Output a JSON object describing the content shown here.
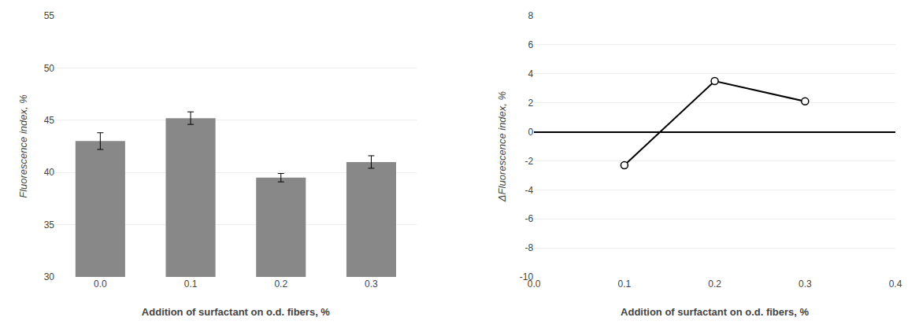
{
  "chart_data": [
    {
      "type": "bar",
      "categories": [
        "0.0",
        "0.1",
        "0.2",
        "0.3"
      ],
      "values": [
        43.0,
        45.2,
        39.5,
        41.0
      ],
      "errors": [
        0.8,
        0.6,
        0.4,
        0.6
      ],
      "color": "#888888",
      "xlabel": "Addition of surfactant on o.d. fibers, %",
      "ylabel": "Fluorescence index, %",
      "ylim": [
        30,
        55
      ],
      "yticks": [
        30,
        35,
        40,
        45,
        50,
        55
      ],
      "grid": true
    },
    {
      "type": "line",
      "x": [
        0.1,
        0.2,
        0.3
      ],
      "values": [
        -2.3,
        3.5,
        2.1
      ],
      "color": "#000000",
      "marker": "circle",
      "xlabel": "Addition of surfactant on o.d. fibers, %",
      "ylabel": "ΔFluorescence index, %",
      "xlim": [
        0.0,
        0.4
      ],
      "xticks": [
        {
          "value": 0.0,
          "label": "0.0"
        },
        0.1,
        0.2,
        0.3,
        0.4
      ],
      "ylim": [
        -10,
        8
      ],
      "yticks": [
        -10,
        -8,
        -6,
        -4,
        -2,
        0,
        2,
        4,
        6,
        8
      ],
      "grid": true
    }
  ]
}
